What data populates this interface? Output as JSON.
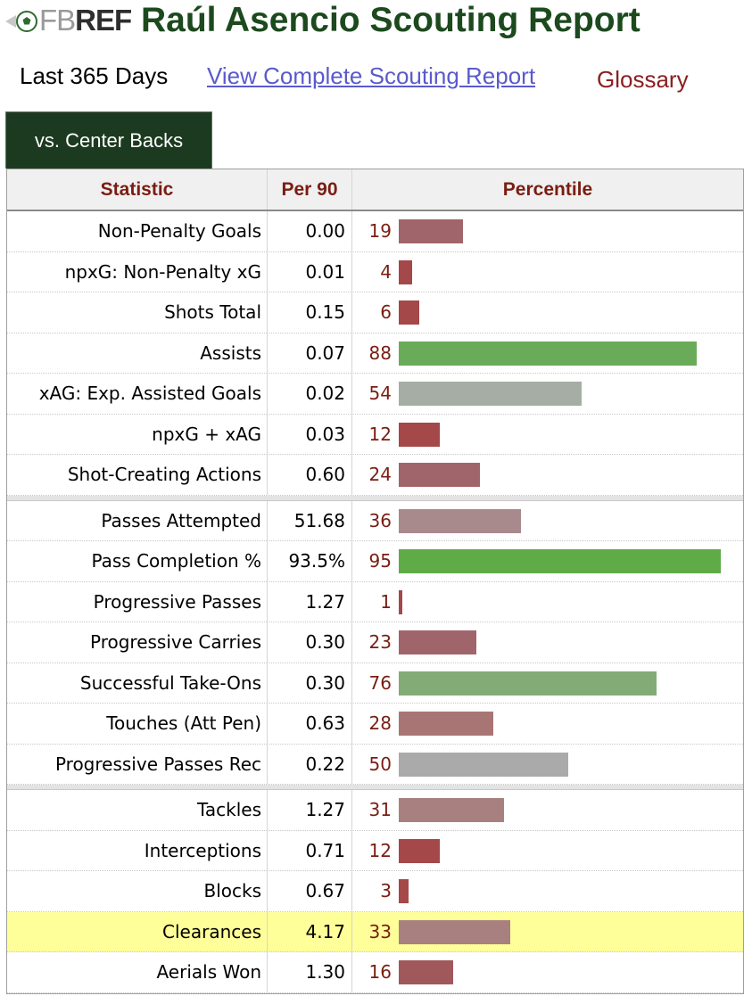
{
  "header": {
    "brand_light": "FB",
    "brand_dark": "REF",
    "title": "Raúl Asencio Scouting Report"
  },
  "subnav": {
    "period": "Last 365 Days",
    "full_report_link": "View Complete Scouting Report",
    "glossary": "Glossary"
  },
  "tab": {
    "label": "vs. Center Backs"
  },
  "table": {
    "headers": {
      "statistic": "Statistic",
      "per90": "Per 90",
      "percentile": "Percentile"
    },
    "groups": [
      [
        {
          "stat": "Non-Penalty Goals",
          "per90": "0.00",
          "percentile": 19,
          "color": "#a0656a"
        },
        {
          "stat": "npxG: Non-Penalty xG",
          "per90": "0.01",
          "percentile": 4,
          "color": "#a44849"
        },
        {
          "stat": "Shots Total",
          "per90": "0.15",
          "percentile": 6,
          "color": "#a44849"
        },
        {
          "stat": "Assists",
          "per90": "0.07",
          "percentile": 88,
          "color": "#6aab5a"
        },
        {
          "stat": "xAG: Exp. Assisted Goals",
          "per90": "0.02",
          "percentile": 54,
          "color": "#a5ada5"
        },
        {
          "stat": "npxG + xAG",
          "per90": "0.03",
          "percentile": 12,
          "color": "#a44849"
        },
        {
          "stat": "Shot-Creating Actions",
          "per90": "0.60",
          "percentile": 24,
          "color": "#a0656a"
        }
      ],
      [
        {
          "stat": "Passes Attempted",
          "per90": "51.68",
          "percentile": 36,
          "color": "#a88a8c"
        },
        {
          "stat": "Pass Completion %",
          "per90": "93.5%",
          "percentile": 95,
          "color": "#5eab48"
        },
        {
          "stat": "Progressive Passes",
          "per90": "1.27",
          "percentile": 1,
          "color": "#a44849"
        },
        {
          "stat": "Progressive Carries",
          "per90": "0.30",
          "percentile": 23,
          "color": "#a0656a"
        },
        {
          "stat": "Successful Take-Ons",
          "per90": "0.30",
          "percentile": 76,
          "color": "#82ab76"
        },
        {
          "stat": "Touches (Att Pen)",
          "per90": "0.63",
          "percentile": 28,
          "color": "#a87575"
        },
        {
          "stat": "Progressive Passes Rec",
          "per90": "0.22",
          "percentile": 50,
          "color": "#aaaaaa"
        }
      ],
      [
        {
          "stat": "Tackles",
          "per90": "1.27",
          "percentile": 31,
          "color": "#a88080"
        },
        {
          "stat": "Interceptions",
          "per90": "0.71",
          "percentile": 12,
          "color": "#a44849"
        },
        {
          "stat": "Blocks",
          "per90": "0.67",
          "percentile": 3,
          "color": "#a44849"
        },
        {
          "stat": "Clearances",
          "per90": "4.17",
          "percentile": 33,
          "color": "#a88080",
          "highlight": true
        },
        {
          "stat": "Aerials Won",
          "per90": "1.30",
          "percentile": 16,
          "color": "#a0585a"
        }
      ]
    ]
  }
}
